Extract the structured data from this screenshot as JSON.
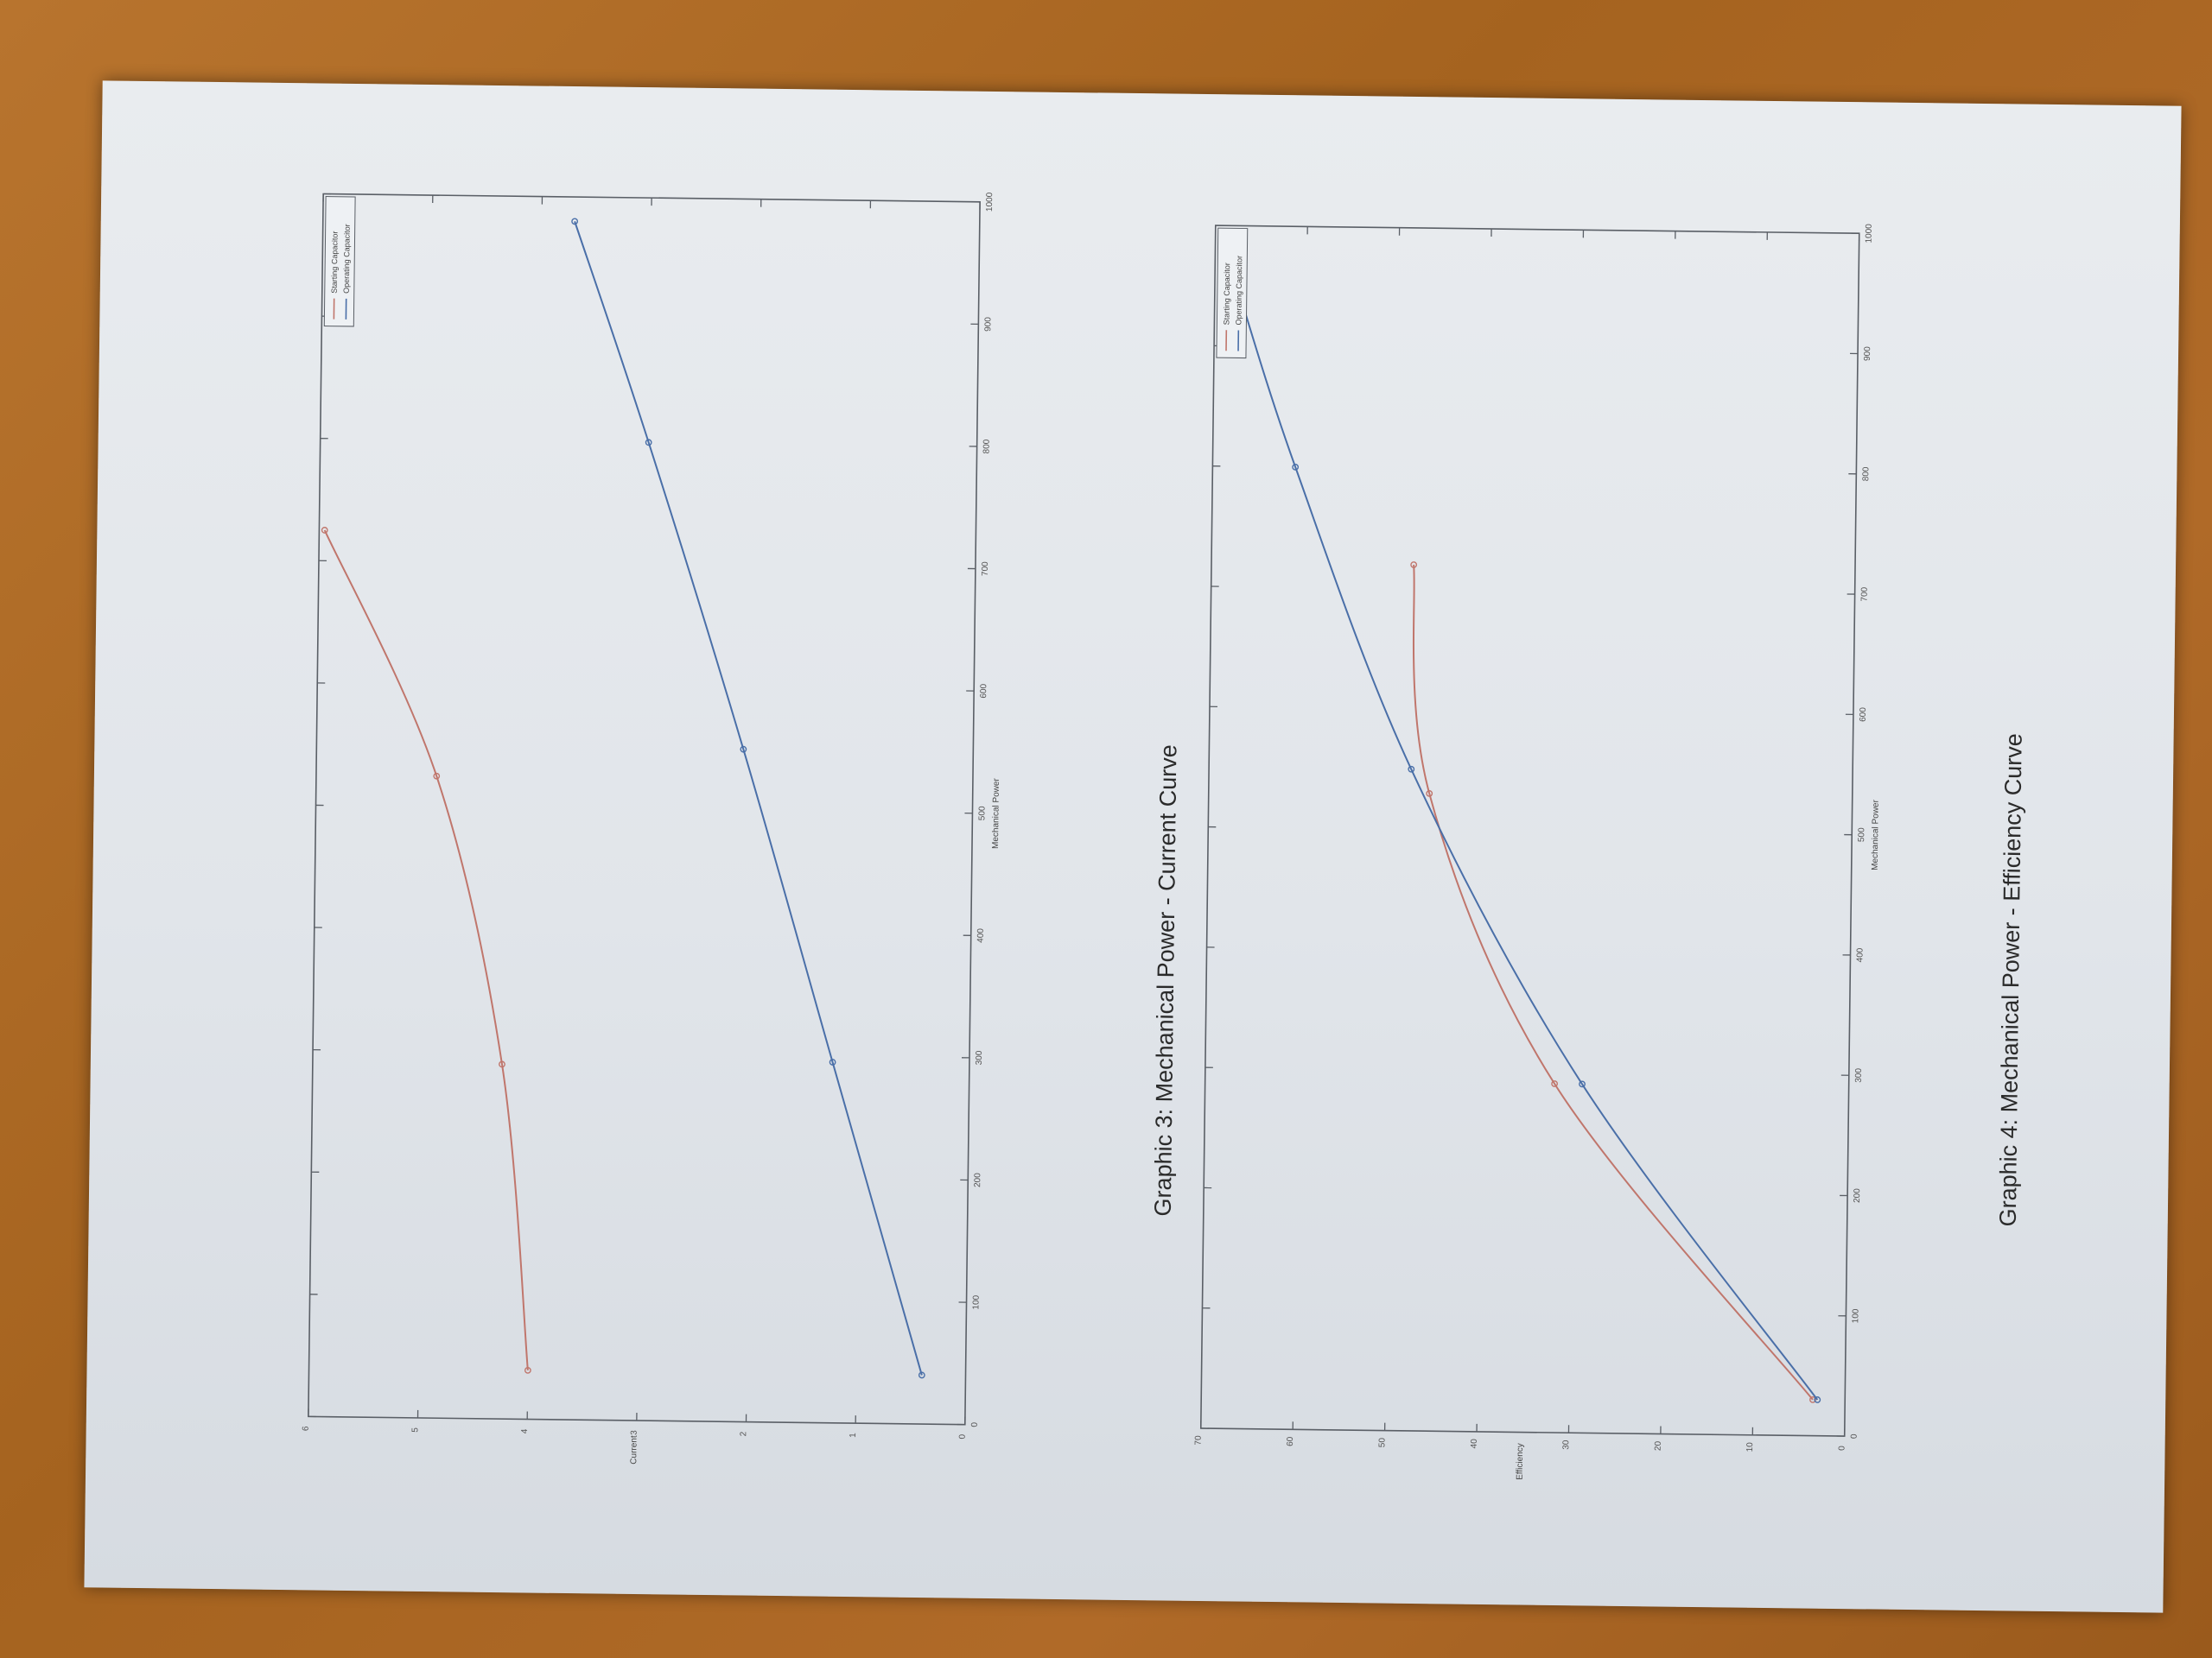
{
  "captions": {
    "graphic3": "Graphic 3: Mechanical Power - Current Curve",
    "graphic4": "Graphic 4: Mechanical Power - Efficiency Curve"
  },
  "chart_data": [
    {
      "type": "line",
      "xlabel": "Mechanical Power",
      "ylabel": "Current",
      "xlim": [
        0,
        1000
      ],
      "ylim": [
        0,
        6
      ],
      "xticks": [
        0,
        100,
        200,
        300,
        400,
        500,
        600,
        700,
        800,
        900,
        1000
      ],
      "yticks": [
        0,
        1,
        2,
        3,
        4,
        5,
        6
      ],
      "grid": false,
      "legend_position": "top-right",
      "legend": [
        "Starting Capacitor",
        "Operating Capacitor"
      ],
      "series": [
        {
          "name": "Starting Capacitor",
          "color": "#c0766c",
          "x": [
            40,
            290,
            525,
            725
          ],
          "y": [
            4.0,
            4.27,
            4.9,
            5.95
          ]
        },
        {
          "name": "Operating Capacitor",
          "color": "#4a6fa8",
          "x": [
            40,
            295,
            550,
            800,
            980
          ],
          "y": [
            0.4,
            1.25,
            2.1,
            3.0,
            3.7
          ]
        }
      ]
    },
    {
      "type": "line",
      "xlabel": "Mechanical Power",
      "ylabel": "Efficiency",
      "xlim": [
        0,
        1000
      ],
      "ylim": [
        0,
        70
      ],
      "xticks": [
        0,
        100,
        200,
        300,
        400,
        500,
        600,
        700,
        800,
        900,
        1000
      ],
      "yticks": [
        0,
        10,
        20,
        30,
        40,
        50,
        60,
        70
      ],
      "grid": false,
      "legend_position": "top-right",
      "legend": [
        "Starting Capacitor",
        "Operating Capacitor"
      ],
      "series": [
        {
          "name": "Starting Capacitor",
          "color": "#c0766c",
          "x": [
            30,
            290,
            530,
            720
          ],
          "y": [
            3.5,
            32,
            46,
            48
          ]
        },
        {
          "name": "Operating Capacitor",
          "color": "#4a6fa8",
          "x": [
            30,
            290,
            550,
            800,
            960
          ],
          "y": [
            3.0,
            29,
            48,
            61,
            68
          ]
        }
      ]
    }
  ]
}
